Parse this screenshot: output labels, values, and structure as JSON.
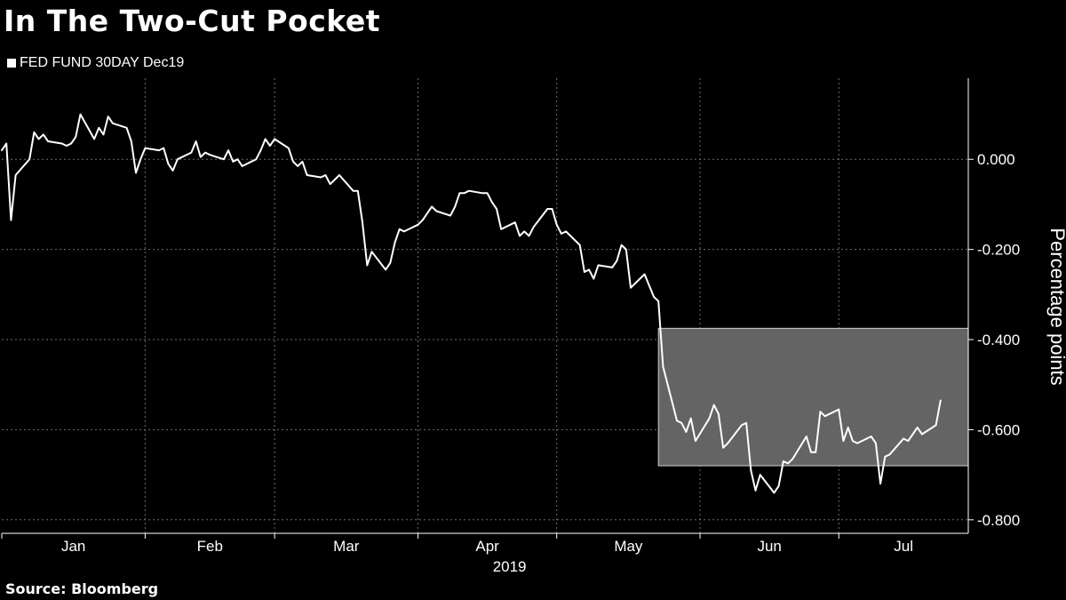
{
  "title": "In The Two-Cut Pocket",
  "source": "Source: Bloomberg",
  "colors": {
    "background": "#000000",
    "line": "#ffffff",
    "grid": "#6e6e6e",
    "highlight": "#646464"
  },
  "chart_data": {
    "type": "line",
    "title": "In The Two-Cut Pocket",
    "ylabel": "Percentage points",
    "xlabel": "2019",
    "ylim": [
      -0.83,
      0.18
    ],
    "y_ticks": [
      0.0,
      -0.2,
      -0.4,
      -0.6,
      -0.8
    ],
    "y_tick_labels": [
      "0.000",
      "-0.200",
      "-0.400",
      "-0.600",
      "-0.800"
    ],
    "x_tick_labels": [
      "Jan",
      "Feb",
      "Mar",
      "Apr",
      "May",
      "Jun",
      "Jul"
    ],
    "year_label": "2019",
    "grid": true,
    "legend": "top-left",
    "y_axis_side": "right",
    "highlight_band": {
      "x_start": "2019-05-23",
      "x_end": "2019-07-29",
      "y_low": -0.68,
      "y_high": -0.375
    },
    "series": [
      {
        "name": "FED FUND 30DAY Dec19",
        "points": [
          [
            "2019-01-01",
            0.02
          ],
          [
            "2019-01-02",
            0.035
          ],
          [
            "2019-01-03",
            -0.135
          ],
          [
            "2019-01-04",
            -0.035
          ],
          [
            "2019-01-07",
            0.0
          ],
          [
            "2019-01-08",
            0.06
          ],
          [
            "2019-01-09",
            0.045
          ],
          [
            "2019-01-10",
            0.055
          ],
          [
            "2019-01-11",
            0.04
          ],
          [
            "2019-01-14",
            0.035
          ],
          [
            "2019-01-15",
            0.03
          ],
          [
            "2019-01-16",
            0.035
          ],
          [
            "2019-01-17",
            0.05
          ],
          [
            "2019-01-18",
            0.1
          ],
          [
            "2019-01-21",
            0.045
          ],
          [
            "2019-01-22",
            0.07
          ],
          [
            "2019-01-23",
            0.055
          ],
          [
            "2019-01-24",
            0.095
          ],
          [
            "2019-01-25",
            0.08
          ],
          [
            "2019-01-28",
            0.07
          ],
          [
            "2019-01-29",
            0.04
          ],
          [
            "2019-01-30",
            -0.03
          ],
          [
            "2019-01-31",
            0.0
          ],
          [
            "2019-02-01",
            0.025
          ],
          [
            "2019-02-04",
            0.02
          ],
          [
            "2019-02-05",
            0.025
          ],
          [
            "2019-02-06",
            -0.01
          ],
          [
            "2019-02-07",
            -0.025
          ],
          [
            "2019-02-08",
            0.0
          ],
          [
            "2019-02-11",
            0.015
          ],
          [
            "2019-02-12",
            0.04
          ],
          [
            "2019-02-13",
            0.005
          ],
          [
            "2019-02-14",
            0.015
          ],
          [
            "2019-02-15",
            0.01
          ],
          [
            "2019-02-18",
            0.0
          ],
          [
            "2019-02-19",
            0.02
          ],
          [
            "2019-02-20",
            -0.005
          ],
          [
            "2019-02-21",
            0.0
          ],
          [
            "2019-02-22",
            -0.015
          ],
          [
            "2019-02-25",
            0.0
          ],
          [
            "2019-02-26",
            0.02
          ],
          [
            "2019-02-27",
            0.045
          ],
          [
            "2019-02-28",
            0.03
          ],
          [
            "2019-03-01",
            0.045
          ],
          [
            "2019-03-04",
            0.025
          ],
          [
            "2019-03-05",
            -0.005
          ],
          [
            "2019-03-06",
            -0.015
          ],
          [
            "2019-03-07",
            -0.005
          ],
          [
            "2019-03-08",
            -0.035
          ],
          [
            "2019-03-11",
            -0.04
          ],
          [
            "2019-03-12",
            -0.035
          ],
          [
            "2019-03-13",
            -0.055
          ],
          [
            "2019-03-14",
            -0.045
          ],
          [
            "2019-03-15",
            -0.035
          ],
          [
            "2019-03-18",
            -0.07
          ],
          [
            "2019-03-19",
            -0.07
          ],
          [
            "2019-03-20",
            -0.14
          ],
          [
            "2019-03-21",
            -0.235
          ],
          [
            "2019-03-22",
            -0.205
          ],
          [
            "2019-03-25",
            -0.245
          ],
          [
            "2019-03-26",
            -0.23
          ],
          [
            "2019-03-27",
            -0.185
          ],
          [
            "2019-03-28",
            -0.155
          ],
          [
            "2019-03-29",
            -0.16
          ],
          [
            "2019-04-01",
            -0.145
          ],
          [
            "2019-04-02",
            -0.135
          ],
          [
            "2019-04-03",
            -0.12
          ],
          [
            "2019-04-04",
            -0.105
          ],
          [
            "2019-04-05",
            -0.115
          ],
          [
            "2019-04-08",
            -0.125
          ],
          [
            "2019-04-09",
            -0.105
          ],
          [
            "2019-04-10",
            -0.075
          ],
          [
            "2019-04-11",
            -0.075
          ],
          [
            "2019-04-12",
            -0.07
          ],
          [
            "2019-04-15",
            -0.075
          ],
          [
            "2019-04-16",
            -0.075
          ],
          [
            "2019-04-17",
            -0.095
          ],
          [
            "2019-04-18",
            -0.11
          ],
          [
            "2019-04-19",
            -0.155
          ],
          [
            "2019-04-22",
            -0.14
          ],
          [
            "2019-04-23",
            -0.17
          ],
          [
            "2019-04-24",
            -0.16
          ],
          [
            "2019-04-25",
            -0.17
          ],
          [
            "2019-04-26",
            -0.15
          ],
          [
            "2019-04-29",
            -0.11
          ],
          [
            "2019-04-30",
            -0.11
          ],
          [
            "2019-05-01",
            -0.145
          ],
          [
            "2019-05-02",
            -0.165
          ],
          [
            "2019-05-03",
            -0.16
          ],
          [
            "2019-05-06",
            -0.19
          ],
          [
            "2019-05-07",
            -0.25
          ],
          [
            "2019-05-08",
            -0.245
          ],
          [
            "2019-05-09",
            -0.265
          ],
          [
            "2019-05-10",
            -0.235
          ],
          [
            "2019-05-13",
            -0.24
          ],
          [
            "2019-05-14",
            -0.225
          ],
          [
            "2019-05-15",
            -0.19
          ],
          [
            "2019-05-16",
            -0.2
          ],
          [
            "2019-05-17",
            -0.285
          ],
          [
            "2019-05-20",
            -0.255
          ],
          [
            "2019-05-21",
            -0.28
          ],
          [
            "2019-05-22",
            -0.305
          ],
          [
            "2019-05-23",
            -0.315
          ],
          [
            "2019-05-24",
            -0.46
          ],
          [
            "2019-05-27",
            -0.58
          ],
          [
            "2019-05-28",
            -0.585
          ],
          [
            "2019-05-29",
            -0.605
          ],
          [
            "2019-05-30",
            -0.575
          ],
          [
            "2019-05-31",
            -0.625
          ],
          [
            "2019-06-03",
            -0.575
          ],
          [
            "2019-06-04",
            -0.545
          ],
          [
            "2019-06-05",
            -0.565
          ],
          [
            "2019-06-06",
            -0.64
          ],
          [
            "2019-06-07",
            -0.63
          ],
          [
            "2019-06-10",
            -0.59
          ],
          [
            "2019-06-11",
            -0.585
          ],
          [
            "2019-06-12",
            -0.69
          ],
          [
            "2019-06-13",
            -0.735
          ],
          [
            "2019-06-14",
            -0.7
          ],
          [
            "2019-06-17",
            -0.74
          ],
          [
            "2019-06-18",
            -0.725
          ],
          [
            "2019-06-19",
            -0.67
          ],
          [
            "2019-06-20",
            -0.675
          ],
          [
            "2019-06-21",
            -0.665
          ],
          [
            "2019-06-24",
            -0.615
          ],
          [
            "2019-06-25",
            -0.65
          ],
          [
            "2019-06-26",
            -0.65
          ],
          [
            "2019-06-27",
            -0.56
          ],
          [
            "2019-06-28",
            -0.57
          ],
          [
            "2019-07-01",
            -0.555
          ],
          [
            "2019-07-02",
            -0.625
          ],
          [
            "2019-07-03",
            -0.595
          ],
          [
            "2019-07-04",
            -0.625
          ],
          [
            "2019-07-05",
            -0.63
          ],
          [
            "2019-07-08",
            -0.615
          ],
          [
            "2019-07-09",
            -0.63
          ],
          [
            "2019-07-10",
            -0.72
          ],
          [
            "2019-07-11",
            -0.66
          ],
          [
            "2019-07-12",
            -0.655
          ],
          [
            "2019-07-15",
            -0.62
          ],
          [
            "2019-07-16",
            -0.625
          ],
          [
            "2019-07-17",
            -0.61
          ],
          [
            "2019-07-18",
            -0.595
          ],
          [
            "2019-07-19",
            -0.61
          ],
          [
            "2019-07-22",
            -0.59
          ],
          [
            "2019-07-23",
            -0.535
          ]
        ]
      }
    ]
  }
}
